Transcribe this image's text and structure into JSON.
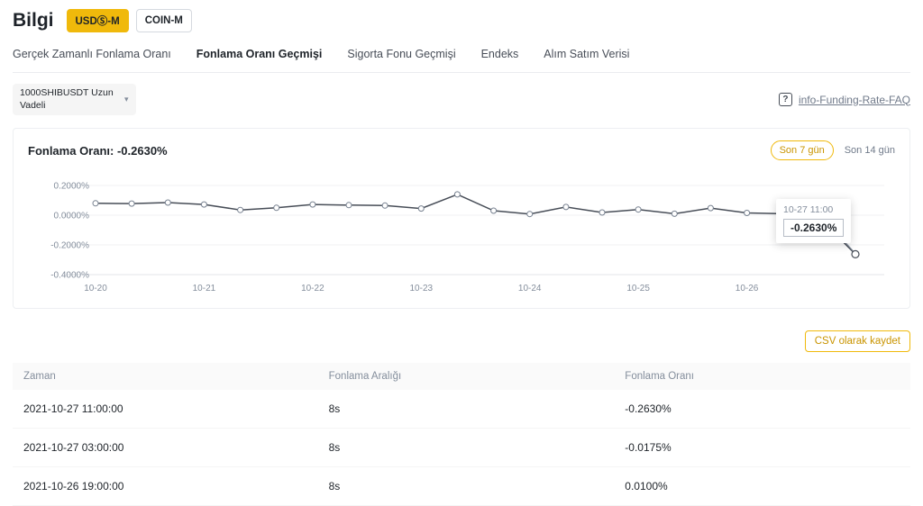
{
  "colors": {
    "accent": "#F0B90B",
    "accent_text": "#c99400",
    "line": "#474d57"
  },
  "header": {
    "title": "Bilgi",
    "market_tabs": [
      {
        "label": "USDⓈ-M",
        "active": true
      },
      {
        "label": "COIN-M",
        "active": false
      }
    ]
  },
  "nav_tabs": [
    {
      "label": "Gerçek Zamanlı Fonlama Oranı",
      "active": false
    },
    {
      "label": "Fonlama Oranı Geçmişi",
      "active": true
    },
    {
      "label": "Sigorta Fonu Geçmişi",
      "active": false
    },
    {
      "label": "Endeks",
      "active": false
    },
    {
      "label": "Alım Satım Verisi",
      "active": false
    }
  ],
  "symbol_select": {
    "value": "1000SHIBUSDT Uzun Vadeli",
    "caret": "▾"
  },
  "faq": {
    "icon_label": "?",
    "link_label": "info-Funding-Rate-FAQ"
  },
  "chart_card": {
    "title": "Fonlama Oranı: -0.2630%",
    "range_buttons": [
      {
        "label": "Son 7 gün",
        "active": true
      },
      {
        "label": "Son 14 gün",
        "active": false
      }
    ]
  },
  "chart_data": {
    "type": "line",
    "title": "Fonlama Oranı",
    "unit": "%",
    "x": [
      "10-20 11:00",
      "10-20 19:00",
      "10-21 03:00",
      "10-21 11:00",
      "10-21 19:00",
      "10-22 03:00",
      "10-22 11:00",
      "10-22 19:00",
      "10-23 03:00",
      "10-23 11:00",
      "10-23 19:00",
      "10-24 03:00",
      "10-24 11:00",
      "10-24 19:00",
      "10-25 03:00",
      "10-25 11:00",
      "10-25 19:00",
      "10-26 03:00",
      "10-26 11:00",
      "10-26 19:00",
      "10-27 03:00",
      "10-27 11:00"
    ],
    "values": [
      0.08,
      0.078,
      0.085,
      0.072,
      0.035,
      0.05,
      0.072,
      0.068,
      0.065,
      0.045,
      0.14,
      0.03,
      0.008,
      0.055,
      0.018,
      0.038,
      0.01,
      0.048,
      0.015,
      0.01,
      -0.0175,
      -0.263
    ],
    "ylim": [
      -0.45,
      0.27
    ],
    "yticks": [
      0.2,
      0.0,
      -0.2,
      -0.4
    ],
    "ytick_labels": [
      "0.2000%",
      "0.0000%",
      "-0.2000%",
      "-0.4000%"
    ],
    "xtick_indices": [
      0,
      3,
      6,
      9,
      12,
      15,
      18
    ],
    "xtick_labels": [
      "10-20",
      "10-21",
      "10-22",
      "10-23",
      "10-24",
      "10-25",
      "10-26"
    ],
    "grid": true,
    "legend": false,
    "tooltip": {
      "time": "10-27 11:00",
      "value": "-0.2630%"
    }
  },
  "csv_button_label": "CSV olarak kaydet",
  "table": {
    "headers": [
      "Zaman",
      "Fonlama Aralığı",
      "Fonlama Oranı"
    ],
    "rows": [
      [
        "2021-10-27 11:00:00",
        "8s",
        "-0.2630%"
      ],
      [
        "2021-10-27 03:00:00",
        "8s",
        "-0.0175%"
      ],
      [
        "2021-10-26 19:00:00",
        "8s",
        "0.0100%"
      ]
    ]
  }
}
